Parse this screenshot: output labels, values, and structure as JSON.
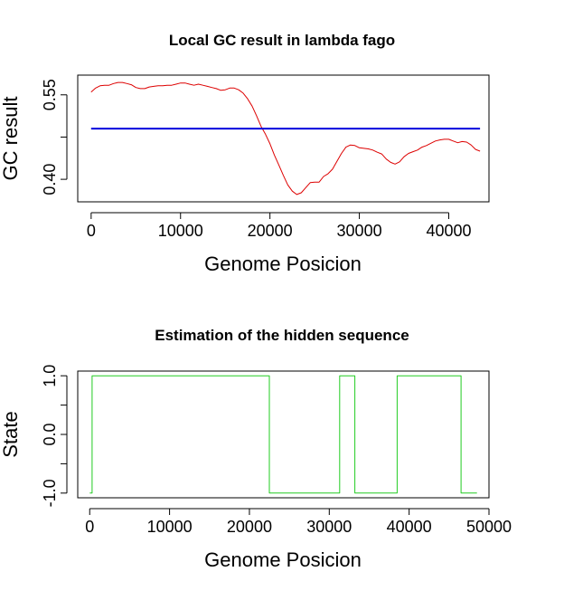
{
  "chart_data": [
    {
      "type": "line",
      "title": "Local GC result in lambda fago",
      "xlabel": "Genome Posicion",
      "ylabel": "GC result",
      "xlim": [
        -1500,
        44500
      ],
      "ylim": [
        0.36,
        0.585
      ],
      "xticks": [
        0,
        10000,
        20000,
        30000,
        40000
      ],
      "xtick_labels": [
        "0",
        "10000",
        "20000",
        "30000",
        "40000"
      ],
      "yticks": [
        0.4,
        0.475,
        0.55
      ],
      "ytick_labels": [
        "0.40",
        "",
        "0.55"
      ],
      "grid": false,
      "legend": "none",
      "colors": {
        "gc": "#dd0000",
        "mean": "#0000dd"
      },
      "series": [
        {
          "kind": "local-gc",
          "x": [
            0,
            500,
            1000,
            1500,
            2000,
            2500,
            3000,
            3500,
            4000,
            4500,
            5000,
            5500,
            6000,
            6500,
            7000,
            7500,
            8000,
            8500,
            9000,
            9500,
            10000,
            10500,
            11000,
            11500,
            12000,
            12500,
            13000,
            13500,
            14000,
            14500,
            15000,
            15500,
            16000,
            16500,
            17000,
            17500,
            18000,
            18500,
            19000,
            19500,
            20000,
            20500,
            21000,
            21500,
            22000,
            22500,
            23000,
            23500,
            24000,
            24500,
            25000,
            25500,
            26000,
            26500,
            27000,
            27500,
            28000,
            28500,
            29000,
            29500,
            30000,
            30500,
            31000,
            31500,
            32000,
            32500,
            33000,
            33500,
            34000,
            34500,
            35000,
            35500,
            36000,
            36500,
            37000,
            37500,
            38000,
            38500,
            39000,
            39500,
            40000,
            40500,
            41000,
            41500,
            42000,
            42500,
            43000,
            43500
          ],
          "y": [
            0.555,
            0.562,
            0.566,
            0.567,
            0.567,
            0.57,
            0.572,
            0.572,
            0.57,
            0.568,
            0.563,
            0.561,
            0.561,
            0.564,
            0.565,
            0.566,
            0.566,
            0.567,
            0.567,
            0.569,
            0.571,
            0.571,
            0.569,
            0.567,
            0.569,
            0.567,
            0.565,
            0.563,
            0.561,
            0.558,
            0.559,
            0.562,
            0.562,
            0.559,
            0.553,
            0.543,
            0.53,
            0.513,
            0.494,
            0.48,
            0.463,
            0.443,
            0.425,
            0.407,
            0.39,
            0.379,
            0.373,
            0.376,
            0.385,
            0.394,
            0.395,
            0.395,
            0.405,
            0.41,
            0.418,
            0.432,
            0.446,
            0.457,
            0.461,
            0.46,
            0.456,
            0.455,
            0.454,
            0.452,
            0.448,
            0.445,
            0.436,
            0.43,
            0.427,
            0.431,
            0.44,
            0.446,
            0.449,
            0.452,
            0.457,
            0.46,
            0.464,
            0.468,
            0.47,
            0.471,
            0.471,
            0.468,
            0.465,
            0.467,
            0.466,
            0.461,
            0.453,
            0.45
          ]
        },
        {
          "kind": "mean",
          "x": [
            0,
            43500
          ],
          "y": [
            0.49,
            0.49
          ]
        }
      ]
    },
    {
      "type": "line",
      "title": "Estimation of the hidden sequence",
      "xlabel": "Genome Posicion",
      "ylabel": "State",
      "xlim": [
        -1500,
        50000
      ],
      "ylim": [
        -1.08,
        1.08
      ],
      "xticks": [
        0,
        10000,
        20000,
        30000,
        40000,
        50000
      ],
      "xtick_labels": [
        "0",
        "10000",
        "20000",
        "30000",
        "40000",
        "50000"
      ],
      "yticks": [
        -1.0,
        -0.5,
        0.0,
        0.5,
        1.0
      ],
      "ytick_labels": [
        "-1.0",
        "",
        "0.0",
        "",
        "1.0"
      ],
      "grid": false,
      "legend": "none",
      "colors": {
        "state": "#22cc22"
      },
      "series": [
        {
          "kind": "step",
          "x": [
            0,
            300,
            300,
            22500,
            22500,
            31300,
            31300,
            33200,
            33200,
            38500,
            38500,
            46500,
            46500,
            48500
          ],
          "y": [
            -1,
            -1,
            1,
            1,
            -1,
            -1,
            1,
            1,
            -1,
            -1,
            1,
            1,
            -1,
            -1
          ]
        }
      ]
    }
  ]
}
